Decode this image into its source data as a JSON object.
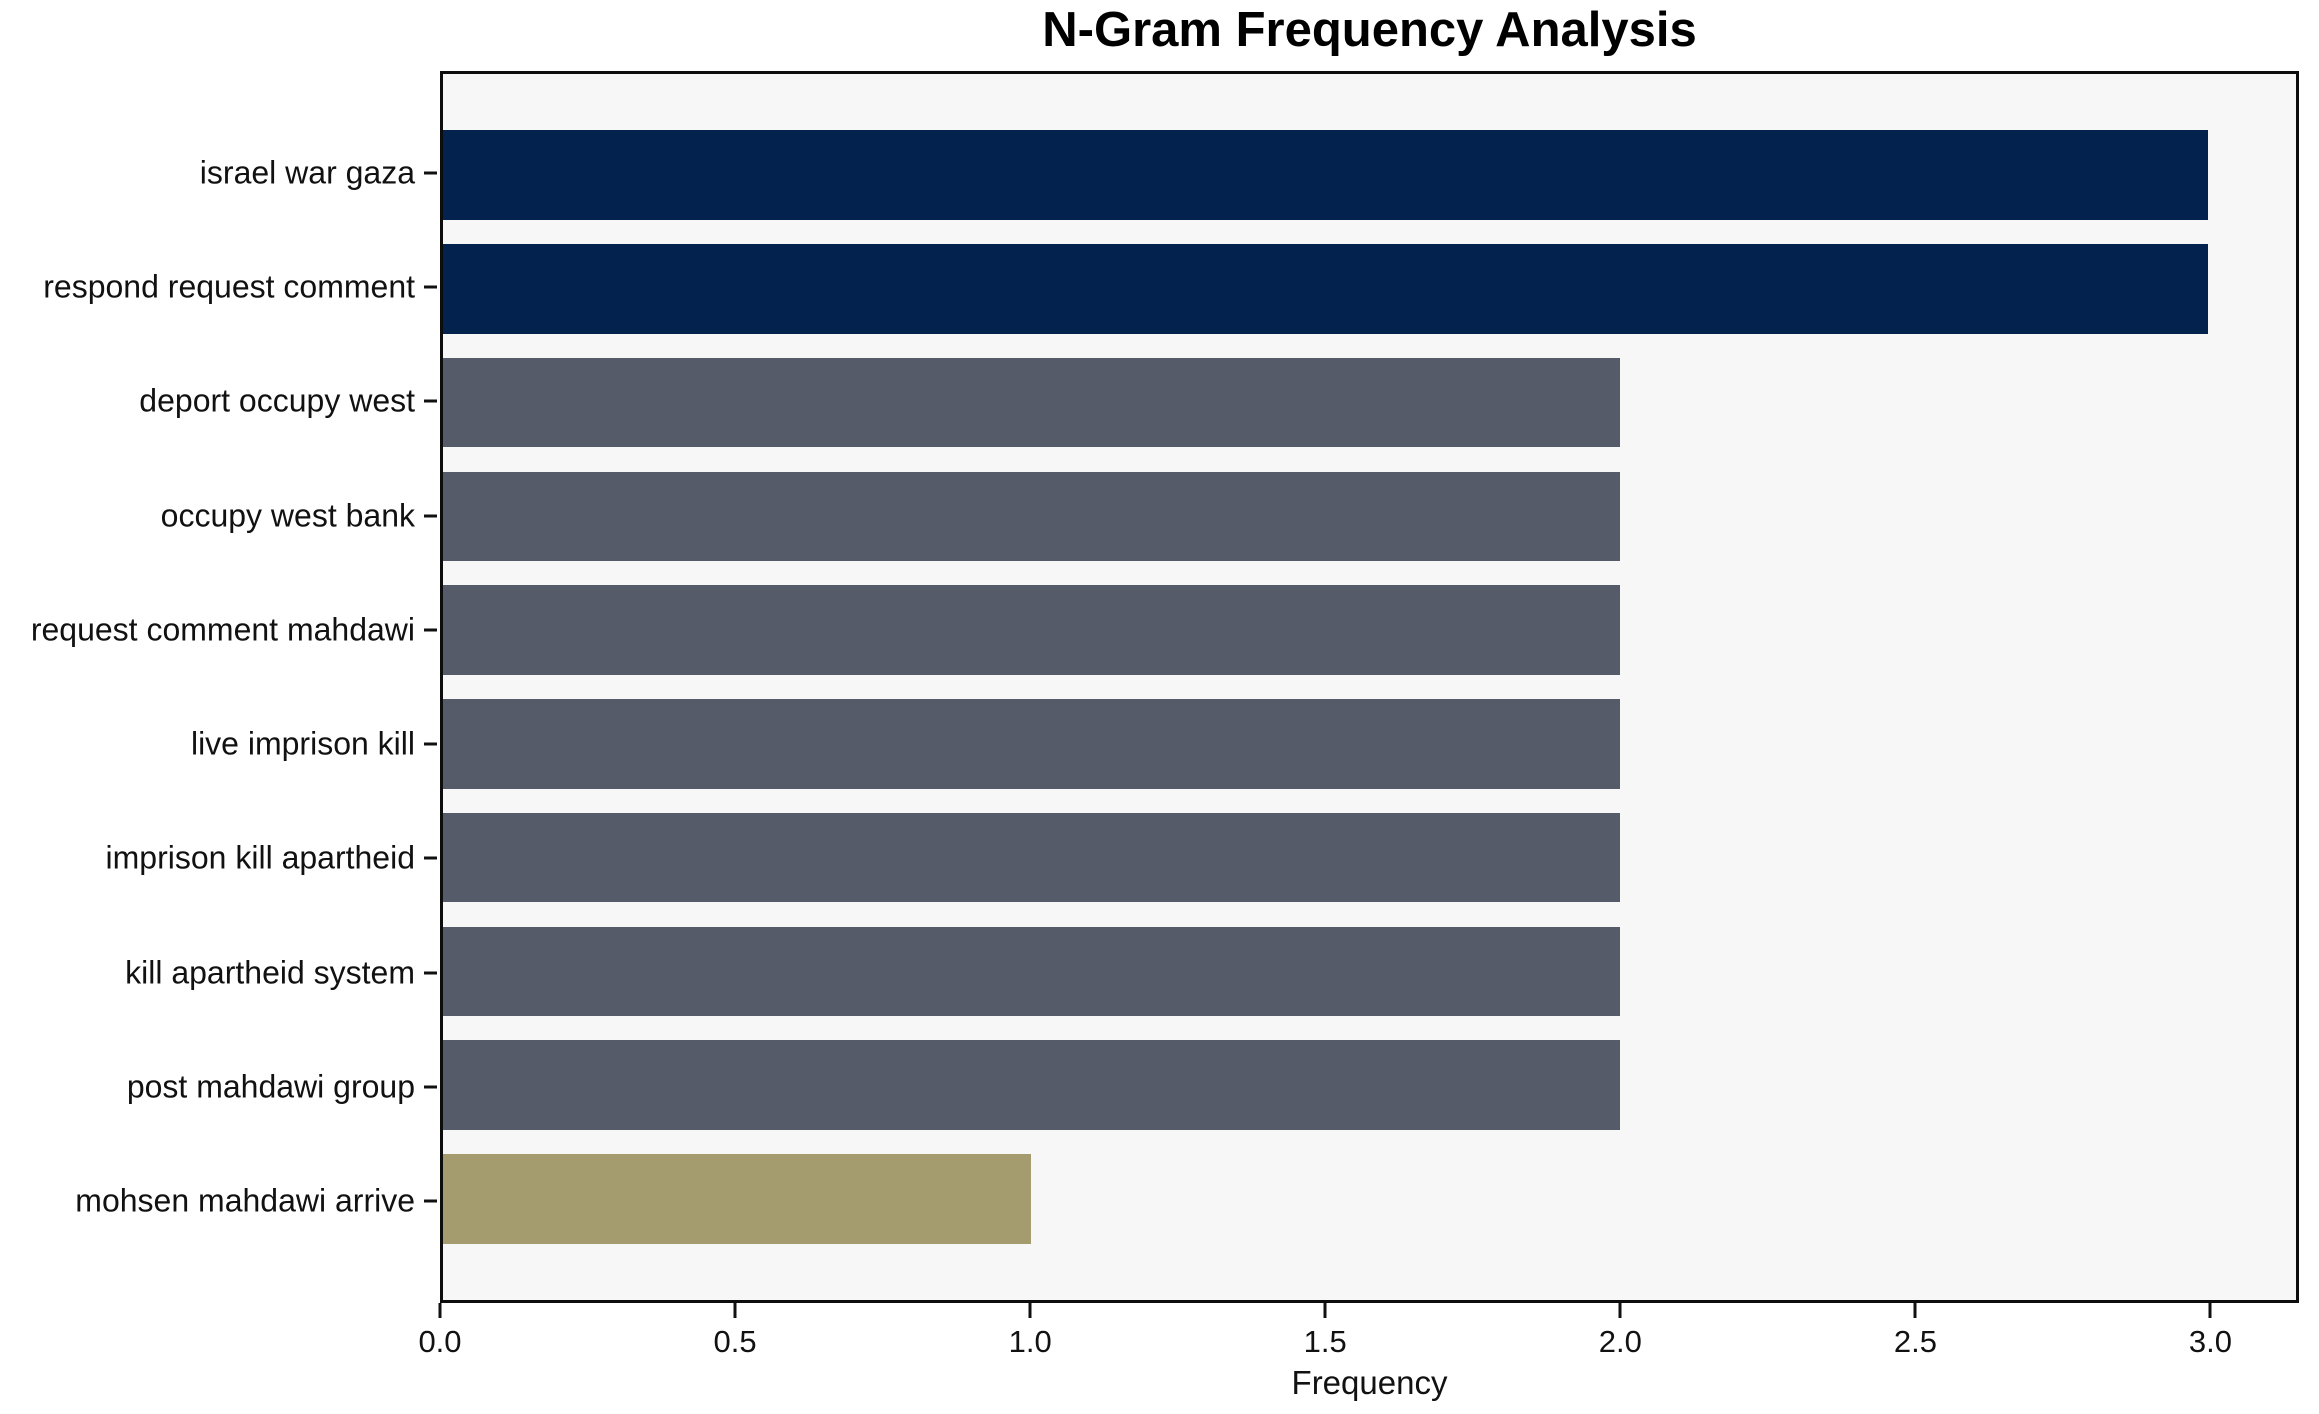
{
  "title": "N-Gram Frequency Analysis",
  "chart_data": {
    "type": "bar",
    "orientation": "horizontal",
    "title": "N-Gram Frequency Analysis",
    "xlabel": "Frequency",
    "ylabel": "",
    "categories": [
      "israel war gaza",
      "respond request comment",
      "deport occupy west",
      "occupy west bank",
      "request comment mahdawi",
      "live imprison kill",
      "imprison kill apartheid",
      "kill apartheid system",
      "post mahdawi group",
      "mohsen mahdawi arrive"
    ],
    "values": [
      3,
      3,
      2,
      2,
      2,
      2,
      2,
      2,
      2,
      1
    ],
    "bar_colors": [
      "#03224d",
      "#03224d",
      "#565b6a",
      "#565b6a",
      "#565b6a",
      "#565b6a",
      "#565b6a",
      "#565b6a",
      "#565b6a",
      "#a49b6f"
    ],
    "xlim": [
      0,
      3.15
    ],
    "xticks": [
      "0.0",
      "0.5",
      "1.0",
      "1.5",
      "2.0",
      "2.5",
      "3.0"
    ],
    "xtick_values": [
      0,
      0.5,
      1,
      1.5,
      2,
      2.5,
      3
    ],
    "grid": false,
    "legend": "none",
    "plot_background": "#f6f7f6",
    "figure_background": "#ffffff",
    "colors": {
      "high_frequency": "#03224d",
      "mid_frequency": "#565b6a",
      "low_frequency": "#a49b6f",
      "axis_border": "#0d0d0d"
    }
  }
}
